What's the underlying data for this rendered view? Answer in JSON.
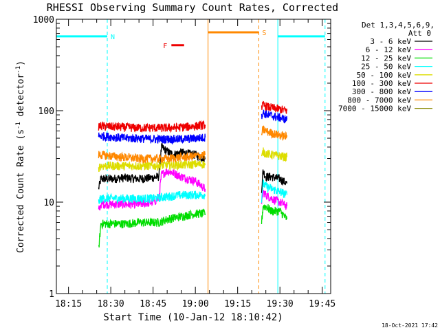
{
  "chart_data": {
    "type": "line",
    "title": "RHESSI Observing Summary Count Rates, Corrected",
    "xlabel": "Start Time (10-Jan-12 18:10:42)",
    "ylabel": "Corrected Count Rate (s⁻¹ detector⁻¹)",
    "ylabel_main": "Corrected Count Rate (s",
    "ylabel_sup1": "-1",
    "ylabel_mid": " detector",
    "ylabel_sup2": "-1",
    "ylabel_end": ")",
    "scale_y": "log",
    "xlim": [
      "18:10:42",
      "19:48:00"
    ],
    "ylim": [
      1,
      1000
    ],
    "x_ticks": [
      "18:15",
      "18:30",
      "18:45",
      "19:00",
      "19:15",
      "19:30",
      "19:45"
    ],
    "y_ticks": [
      "1",
      "10",
      "100",
      "1000"
    ],
    "timestamp": "18-Oct-2021 17:42",
    "legend": {
      "placement": "top-right-outside",
      "header": [
        "Det 1,3,4,5,6,9,",
        "Att 0"
      ],
      "items": [
        {
          "label": "3 - 6 keV",
          "color": "#000000"
        },
        {
          "label": "6 - 12 keV",
          "color": "#ff00ff"
        },
        {
          "label": "12 - 25 keV",
          "color": "#00dd00"
        },
        {
          "label": "25 - 50 keV",
          "color": "#00ffff"
        },
        {
          "label": "50 - 100 keV",
          "color": "#dddd00"
        },
        {
          "label": "100 - 300 keV",
          "color": "#ee0000"
        },
        {
          "label": "300 - 800 keV",
          "color": "#0000ff"
        },
        {
          "label": "800 - 7000 keV",
          "color": "#ff8800"
        },
        {
          "label": "7000 - 15000 keV",
          "color": "#888800"
        }
      ]
    },
    "flags": [
      {
        "label": "N",
        "color": "#00ffff",
        "intervals": [
          [
            "18:10:42",
            "18:28:45"
          ],
          [
            "19:29:15",
            "19:46:00"
          ]
        ],
        "level": 650
      },
      {
        "label": "F",
        "color": "#ee0000",
        "intervals": [
          [
            "18:51:30",
            "18:56:00"
          ]
        ],
        "level": 520
      },
      {
        "label": "S",
        "color": "#ff8800",
        "intervals": [
          [
            "19:04:30",
            "19:22:30"
          ]
        ],
        "level": 720
      }
    ],
    "series": [
      {
        "name": "3 - 6 keV",
        "color": "#000000",
        "x": [
          "18:25:40",
          "18:26:30",
          "18:30",
          "18:35",
          "18:40",
          "18:45",
          "18:47",
          "18:48",
          "18:50",
          "18:52",
          "18:55",
          "19:00",
          "19:03:30",
          "19:23:30",
          "19:24",
          "19:25",
          "19:27",
          "19:30",
          "19:32:30"
        ],
        "y": [
          14,
          18,
          18,
          18.5,
          18,
          18.5,
          19,
          40,
          36,
          33,
          35,
          33,
          30,
          14,
          22,
          19,
          19,
          18,
          16
        ]
      },
      {
        "name": "6 - 12 keV",
        "color": "#ff00ff",
        "x": [
          "18:25:40",
          "18:26:30",
          "18:30",
          "18:35",
          "18:40",
          "18:45",
          "18:47",
          "18:48",
          "18:50",
          "18:52",
          "18:55",
          "19:00",
          "19:03:30",
          "19:23:30",
          "19:24",
          "19:25",
          "19:27",
          "19:30",
          "19:32:30"
        ],
        "y": [
          8,
          9.5,
          9.5,
          9.5,
          9.5,
          10,
          11,
          20,
          22,
          21,
          19,
          17,
          14,
          9,
          13,
          12,
          11,
          10,
          9
        ]
      },
      {
        "name": "12 - 25 keV",
        "color": "#00dd00",
        "x": [
          "18:25:40",
          "18:26:30",
          "18:30",
          "18:35",
          "18:40",
          "18:45",
          "18:47",
          "18:50",
          "18:55",
          "19:00",
          "19:03:30",
          "19:23:30",
          "19:24",
          "19:25",
          "19:27",
          "19:30",
          "19:32:30"
        ],
        "y": [
          3,
          5.8,
          5.8,
          5.8,
          6,
          6,
          6,
          6.5,
          7,
          7.5,
          7.5,
          6,
          9,
          9,
          8,
          8,
          6.5
        ]
      },
      {
        "name": "25 - 50 keV",
        "color": "#00ffff",
        "x": [
          "18:25:40",
          "18:26:30",
          "18:30",
          "18:35",
          "18:40",
          "18:45",
          "18:50",
          "18:55",
          "19:00",
          "19:03:30",
          "19:23:30",
          "19:24",
          "19:25",
          "19:27",
          "19:30",
          "19:32:30"
        ],
        "y": [
          10,
          11,
          11,
          11,
          11,
          11,
          11.5,
          12,
          12,
          12,
          11,
          16,
          15,
          14,
          13,
          12
        ]
      },
      {
        "name": "50 - 100 keV",
        "color": "#dddd00",
        "x": [
          "18:25:40",
          "18:26:30",
          "18:30",
          "18:35",
          "18:40",
          "18:45",
          "18:50",
          "18:55",
          "19:00",
          "19:03:30",
          "19:23:30",
          "19:24",
          "19:25",
          "19:27",
          "19:30",
          "19:32:30"
        ],
        "y": [
          24,
          25,
          25,
          25,
          25,
          25,
          25.5,
          25.5,
          26,
          26,
          30,
          36,
          34,
          33,
          32,
          31
        ]
      },
      {
        "name": "100 - 300 keV",
        "color": "#ee0000",
        "x": [
          "18:25:40",
          "18:26:30",
          "18:30",
          "18:35",
          "18:40",
          "18:45",
          "18:50",
          "18:55",
          "19:00",
          "19:03:30",
          "19:23:30",
          "19:24",
          "19:25",
          "19:27",
          "19:30",
          "19:32:30"
        ],
        "y": [
          68,
          68,
          67,
          66,
          65,
          65,
          65,
          66,
          68,
          70,
          110,
          115,
          112,
          108,
          104,
          100
        ]
      },
      {
        "name": "300 - 800 keV",
        "color": "#0000ff",
        "x": [
          "18:25:40",
          "18:26:30",
          "18:30",
          "18:35",
          "18:40",
          "18:45",
          "18:50",
          "18:55",
          "19:00",
          "19:03:30",
          "19:23:30",
          "19:24",
          "19:25",
          "19:27",
          "19:30",
          "19:32:30"
        ],
        "y": [
          53,
          53,
          52,
          50,
          50,
          49,
          49,
          49,
          50,
          51,
          90,
          95,
          92,
          88,
          84,
          80
        ]
      },
      {
        "name": "800 - 7000 keV",
        "color": "#ff8800",
        "x": [
          "18:25:40",
          "18:26:30",
          "18:30",
          "18:35",
          "18:40",
          "18:45",
          "18:50",
          "18:55",
          "19:00",
          "19:03:30",
          "19:23:30",
          "19:24",
          "19:25",
          "19:27",
          "19:30",
          "19:32:30"
        ],
        "y": [
          33,
          33,
          32,
          31,
          30,
          30,
          30,
          31,
          32,
          33,
          56,
          62,
          60,
          57,
          54,
          52
        ]
      }
    ]
  }
}
